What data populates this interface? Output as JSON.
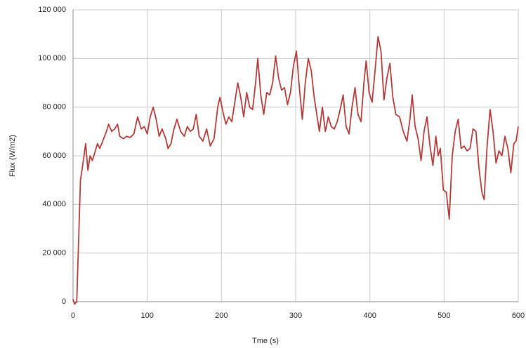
{
  "chart_data": {
    "type": "line",
    "x_label": "Tme (s)",
    "y_label": "Flux (W/m2)",
    "xlim": [
      0,
      600
    ],
    "xticks": [
      0,
      100,
      200,
      300,
      400,
      500,
      600
    ],
    "ylim": [
      0,
      120000
    ],
    "yticks": [
      0,
      {
        "value": 20000,
        "label": "20 000"
      },
      {
        "value": 40000,
        "label": "40 000"
      },
      {
        "value": 60000,
        "label": "60 000"
      },
      {
        "value": 80000,
        "label": "80 000"
      },
      {
        "value": 100000,
        "label": "100 000"
      },
      {
        "value": 120000,
        "label": "120 000"
      }
    ],
    "grid": true,
    "x": [
      0,
      2,
      5,
      8,
      10,
      13,
      17,
      20,
      23,
      26,
      30,
      33,
      36,
      40,
      45,
      48,
      52,
      56,
      60,
      63,
      68,
      72,
      77,
      82,
      87,
      92,
      96,
      100,
      104,
      108,
      112,
      116,
      120,
      125,
      128,
      132,
      136,
      140,
      145,
      150,
      154,
      158,
      162,
      166,
      170,
      175,
      180,
      185,
      190,
      195,
      198,
      202,
      206,
      210,
      214,
      218,
      222,
      226,
      230,
      234,
      238,
      242,
      246,
      249,
      253,
      257,
      261,
      265,
      269,
      273,
      277,
      281,
      285,
      289,
      293,
      297,
      301,
      305,
      309,
      313,
      317,
      321,
      325,
      328,
      332,
      336,
      340,
      344,
      348,
      352,
      356,
      360,
      364,
      368,
      372,
      376,
      380,
      384,
      388,
      392,
      395,
      399,
      403,
      407,
      411,
      415,
      419,
      423,
      427,
      431,
      435,
      440,
      445,
      450,
      454,
      457,
      461,
      465,
      469,
      473,
      477,
      481,
      485,
      489,
      492,
      495,
      499,
      503,
      507,
      511,
      515,
      519,
      523,
      527,
      531,
      535,
      539,
      543,
      547,
      551,
      554,
      558,
      562,
      566,
      570,
      574,
      578,
      582,
      586,
      590,
      594,
      597,
      600
    ],
    "series": [
      {
        "color": "#b23c3a",
        "values": [
          1000,
          -1000,
          0,
          30000,
          50000,
          56000,
          65000,
          54000,
          60000,
          58000,
          62000,
          65000,
          63000,
          66000,
          70000,
          73000,
          70000,
          71000,
          73000,
          68000,
          67000,
          68000,
          67500,
          69000,
          76000,
          71000,
          72000,
          69000,
          76000,
          80000,
          75000,
          68000,
          71000,
          67000,
          63000,
          65000,
          71000,
          75000,
          70000,
          68000,
          72000,
          70000,
          71000,
          77000,
          68000,
          66000,
          71000,
          64000,
          67000,
          80000,
          84000,
          78000,
          73000,
          76000,
          74000,
          82000,
          90000,
          84000,
          76000,
          86000,
          80000,
          79000,
          90000,
          100000,
          85000,
          77000,
          86000,
          85000,
          90000,
          101000,
          92000,
          87000,
          88000,
          81000,
          86000,
          97000,
          103000,
          88000,
          75000,
          90000,
          100000,
          95000,
          84000,
          78000,
          70000,
          80000,
          70000,
          76000,
          72000,
          71000,
          74000,
          79000,
          85000,
          72000,
          69000,
          80000,
          88000,
          77000,
          74000,
          90000,
          99000,
          86000,
          82000,
          95000,
          109000,
          103000,
          83000,
          92000,
          98000,
          84000,
          77000,
          76000,
          70000,
          66000,
          75000,
          85000,
          72000,
          67000,
          58000,
          70000,
          76000,
          64000,
          56000,
          68000,
          60000,
          63000,
          46000,
          45000,
          34000,
          60000,
          70000,
          75000,
          63000,
          64000,
          62000,
          63000,
          71000,
          70000,
          55000,
          45000,
          42000,
          64000,
          79000,
          70000,
          57000,
          62000,
          60000,
          68000,
          63000,
          53000,
          65000,
          66000,
          72000
        ]
      }
    ]
  }
}
